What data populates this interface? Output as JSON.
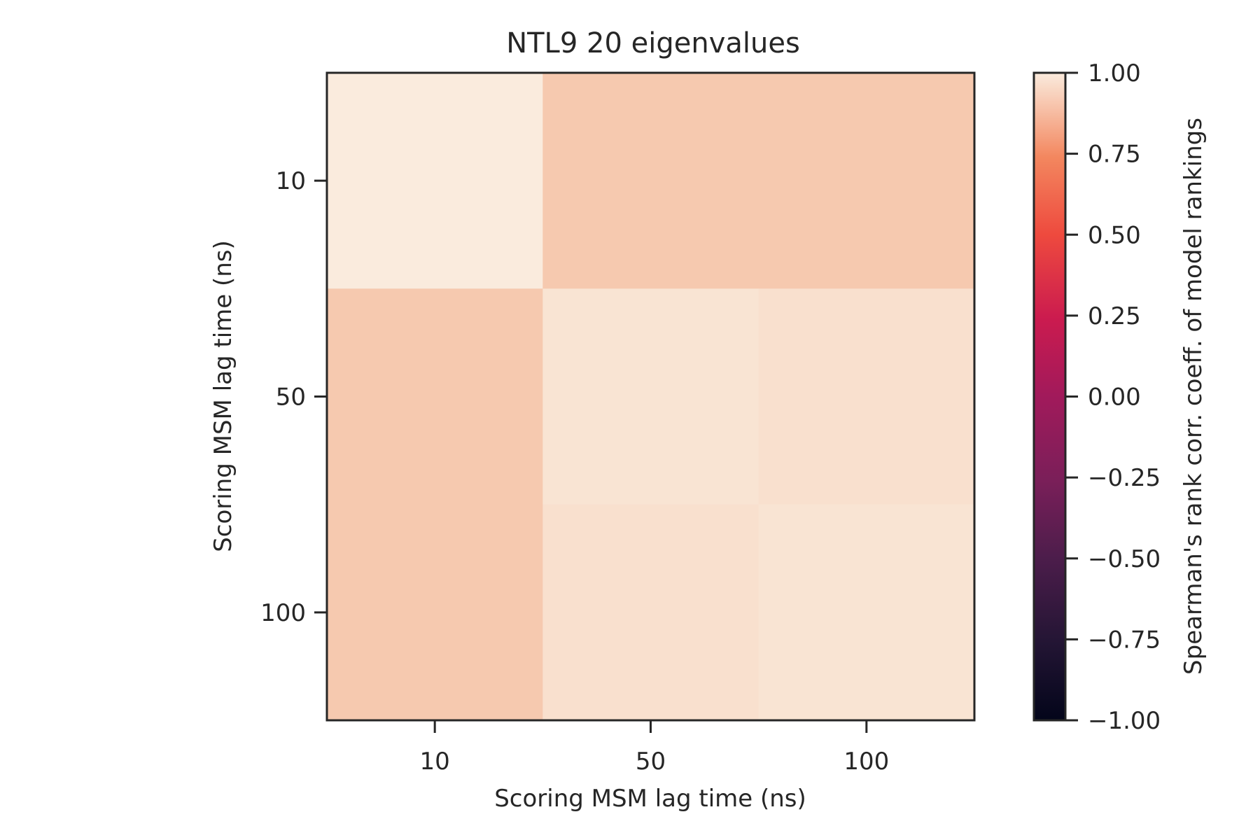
{
  "chart_data": {
    "type": "heatmap",
    "title": "NTL9 20 eigenvalues",
    "xlabel": "Scoring MSM lag time (ns)",
    "ylabel": "Scoring MSM lag time (ns)",
    "x_categories": [
      "10",
      "50",
      "100"
    ],
    "y_categories": [
      "10",
      "50",
      "100"
    ],
    "values": [
      [
        1.0,
        0.91,
        0.91
      ],
      [
        0.91,
        0.98,
        0.97
      ],
      [
        0.91,
        0.97,
        0.98
      ]
    ],
    "colorbar": {
      "label": "Spearman's rank corr. coeff. of model rankings",
      "range": [
        -1.0,
        1.0
      ],
      "ticks": [
        "1.00",
        "0.75",
        "0.50",
        "0.25",
        "0.00",
        "−0.25",
        "−0.50",
        "−0.75",
        "−1.00"
      ],
      "tick_values": [
        1.0,
        0.75,
        0.5,
        0.25,
        0.0,
        -0.25,
        -0.5,
        -0.75,
        -1.0
      ],
      "colormap": "rocket"
    }
  }
}
